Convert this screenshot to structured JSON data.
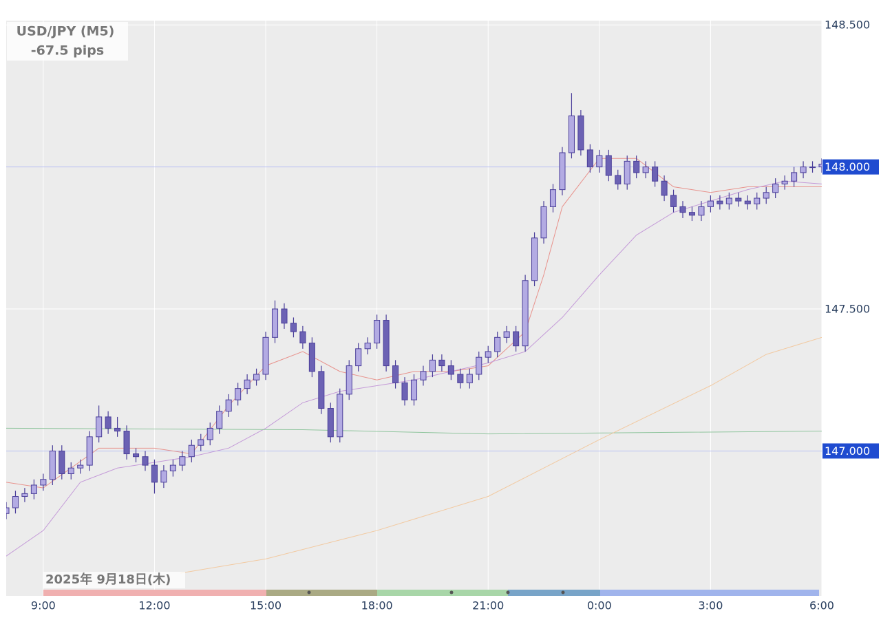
{
  "chart_data": {
    "type": "candlestick",
    "title": "USD/JPY (M5)",
    "subtitle": "-67.5 pips",
    "date_label": "2025年 9月18日(木)",
    "xlim": [
      8,
      30
    ],
    "ylim": [
      146.49,
      148.515
    ],
    "xticks": [
      {
        "value": 9,
        "label": "9:00"
      },
      {
        "value": 12,
        "label": "12:00"
      },
      {
        "value": 15,
        "label": "15:00"
      },
      {
        "value": 18,
        "label": "18:00"
      },
      {
        "value": 21,
        "label": "21:00"
      },
      {
        "value": 24,
        "label": "0:00"
      },
      {
        "value": 27,
        "label": "3:00"
      },
      {
        "value": 30,
        "label": "6:00"
      }
    ],
    "yticks": [
      {
        "value": 148.5,
        "label": "148.500"
      },
      {
        "value": 148,
        "label": "148.000",
        "highlight": true
      },
      {
        "value": 147.5,
        "label": "147.500"
      },
      {
        "value": 147,
        "label": "147.000",
        "highlight": true
      }
    ],
    "grid": true,
    "up_color": "#b3abe3",
    "down_color": "#6c62b4",
    "edge_color": "#4b3f9a",
    "highlight_color": "#1f4bd0",
    "x": [
      8,
      8.25,
      8.5,
      8.75,
      9,
      9.25,
      9.5,
      9.75,
      10,
      10.25,
      10.5,
      10.75,
      11,
      11.25,
      11.5,
      11.75,
      12,
      12.25,
      12.5,
      12.75,
      13,
      13.25,
      13.5,
      13.75,
      14,
      14.25,
      14.5,
      14.75,
      15,
      15.25,
      15.5,
      15.75,
      16,
      16.25,
      16.5,
      16.75,
      17,
      17.25,
      17.5,
      17.75,
      18,
      18.25,
      18.5,
      18.75,
      19,
      19.25,
      19.5,
      19.75,
      20,
      20.25,
      20.5,
      20.75,
      21,
      21.25,
      21.5,
      21.75,
      22,
      22.25,
      22.5,
      22.75,
      23,
      23.25,
      23.5,
      23.75,
      24,
      24.25,
      24.5,
      24.75,
      25,
      25.25,
      25.5,
      25.75,
      26,
      26.25,
      26.5,
      26.75,
      27,
      27.25,
      27.5,
      27.75,
      28,
      28.25,
      28.5,
      28.75,
      29,
      29.25,
      29.5,
      29.75,
      30
    ],
    "candles": [
      [
        146.78,
        146.82,
        146.76,
        146.8
      ],
      [
        146.8,
        146.86,
        146.78,
        146.84
      ],
      [
        146.84,
        146.87,
        146.82,
        146.85
      ],
      [
        146.85,
        146.9,
        146.83,
        146.88
      ],
      [
        146.88,
        146.92,
        146.86,
        146.9
      ],
      [
        146.9,
        147.02,
        146.88,
        147.0
      ],
      [
        147.0,
        147.02,
        146.9,
        146.92
      ],
      [
        146.92,
        146.96,
        146.9,
        146.94
      ],
      [
        146.94,
        146.97,
        146.92,
        146.95
      ],
      [
        146.95,
        147.07,
        146.93,
        147.05
      ],
      [
        147.05,
        147.16,
        147.03,
        147.12
      ],
      [
        147.12,
        147.14,
        147.06,
        147.08
      ],
      [
        147.08,
        147.12,
        147.05,
        147.07
      ],
      [
        147.07,
        147.09,
        146.97,
        146.99
      ],
      [
        146.99,
        147.01,
        146.96,
        146.98
      ],
      [
        146.98,
        147.0,
        146.93,
        146.95
      ],
      [
        146.95,
        146.97,
        146.85,
        146.89
      ],
      [
        146.89,
        146.95,
        146.87,
        146.93
      ],
      [
        146.93,
        146.97,
        146.91,
        146.95
      ],
      [
        146.95,
        147.0,
        146.93,
        146.98
      ],
      [
        146.98,
        147.04,
        146.96,
        147.02
      ],
      [
        147.02,
        147.06,
        147.0,
        147.04
      ],
      [
        147.04,
        147.1,
        147.02,
        147.08
      ],
      [
        147.08,
        147.16,
        147.06,
        147.14
      ],
      [
        147.14,
        147.2,
        147.12,
        147.18
      ],
      [
        147.18,
        147.24,
        147.16,
        147.22
      ],
      [
        147.22,
        147.27,
        147.2,
        147.25
      ],
      [
        147.25,
        147.29,
        147.23,
        147.27
      ],
      [
        147.27,
        147.42,
        147.25,
        147.4
      ],
      [
        147.4,
        147.53,
        147.38,
        147.5
      ],
      [
        147.5,
        147.52,
        147.43,
        147.45
      ],
      [
        147.45,
        147.47,
        147.4,
        147.42
      ],
      [
        147.42,
        147.44,
        147.36,
        147.38
      ],
      [
        147.38,
        147.4,
        147.26,
        147.28
      ],
      [
        147.28,
        147.3,
        147.13,
        147.15
      ],
      [
        147.15,
        147.17,
        147.03,
        147.05
      ],
      [
        147.05,
        147.22,
        147.03,
        147.2
      ],
      [
        147.2,
        147.32,
        147.18,
        147.3
      ],
      [
        147.3,
        147.38,
        147.28,
        147.36
      ],
      [
        147.36,
        147.4,
        147.34,
        147.38
      ],
      [
        147.38,
        147.48,
        147.36,
        147.46
      ],
      [
        147.46,
        147.48,
        147.28,
        147.3
      ],
      [
        147.3,
        147.32,
        147.22,
        147.24
      ],
      [
        147.24,
        147.26,
        147.16,
        147.18
      ],
      [
        147.18,
        147.27,
        147.16,
        147.25
      ],
      [
        147.25,
        147.3,
        147.23,
        147.28
      ],
      [
        147.28,
        147.34,
        147.26,
        147.32
      ],
      [
        147.32,
        147.34,
        147.28,
        147.3
      ],
      [
        147.3,
        147.32,
        147.25,
        147.27
      ],
      [
        147.27,
        147.29,
        147.22,
        147.24
      ],
      [
        147.24,
        147.29,
        147.22,
        147.27
      ],
      [
        147.27,
        147.35,
        147.25,
        147.33
      ],
      [
        147.33,
        147.37,
        147.31,
        147.35
      ],
      [
        147.35,
        147.42,
        147.33,
        147.4
      ],
      [
        147.4,
        147.44,
        147.38,
        147.42
      ],
      [
        147.42,
        147.44,
        147.35,
        147.37
      ],
      [
        147.37,
        147.62,
        147.35,
        147.6
      ],
      [
        147.6,
        147.77,
        147.58,
        147.75
      ],
      [
        147.75,
        147.88,
        147.73,
        147.86
      ],
      [
        147.86,
        147.94,
        147.84,
        147.92
      ],
      [
        147.92,
        148.07,
        147.9,
        148.05
      ],
      [
        148.05,
        148.26,
        148.03,
        148.18
      ],
      [
        148.18,
        148.2,
        148.04,
        148.06
      ],
      [
        148.06,
        148.08,
        147.98,
        148.0
      ],
      [
        148.0,
        148.06,
        147.98,
        148.04
      ],
      [
        148.04,
        148.06,
        147.95,
        147.97
      ],
      [
        147.97,
        147.99,
        147.92,
        147.94
      ],
      [
        147.94,
        148.04,
        147.92,
        148.02
      ],
      [
        148.02,
        148.04,
        147.96,
        147.98
      ],
      [
        147.98,
        148.02,
        147.96,
        148.0
      ],
      [
        148.0,
        148.02,
        147.93,
        147.95
      ],
      [
        147.95,
        147.97,
        147.88,
        147.9
      ],
      [
        147.9,
        147.92,
        147.84,
        147.86
      ],
      [
        147.86,
        147.88,
        147.82,
        147.84
      ],
      [
        147.84,
        147.86,
        147.81,
        147.83
      ],
      [
        147.83,
        147.88,
        147.81,
        147.86
      ],
      [
        147.86,
        147.9,
        147.84,
        147.88
      ],
      [
        147.88,
        147.9,
        147.85,
        147.87
      ],
      [
        147.87,
        147.91,
        147.85,
        147.89
      ],
      [
        147.89,
        147.91,
        147.86,
        147.88
      ],
      [
        147.88,
        147.9,
        147.85,
        147.87
      ],
      [
        147.87,
        147.91,
        147.85,
        147.89
      ],
      [
        147.89,
        147.93,
        147.87,
        147.91
      ],
      [
        147.91,
        147.96,
        147.89,
        147.94
      ],
      [
        147.94,
        147.97,
        147.92,
        147.95
      ],
      [
        147.95,
        148.0,
        147.93,
        147.98
      ],
      [
        147.98,
        148.02,
        147.96,
        148.0
      ],
      [
        148.0,
        148.02,
        147.98,
        148.0
      ],
      [
        148.0,
        148.03,
        147.98,
        148.01
      ]
    ],
    "lines": [
      {
        "color": "#e8928c",
        "x": [
          8,
          9,
          10.5,
          12,
          13,
          14,
          15,
          16,
          17,
          18,
          19,
          20,
          21,
          22,
          22.5,
          23,
          24,
          25,
          26,
          27,
          28,
          29,
          30
        ],
        "values": [
          146.89,
          146.87,
          147.01,
          147.01,
          146.99,
          147.16,
          147.3,
          147.35,
          147.28,
          147.25,
          147.28,
          147.28,
          147.3,
          147.42,
          147.62,
          147.86,
          148.03,
          148.03,
          147.93,
          147.91,
          147.93,
          147.93,
          147.93
        ]
      },
      {
        "color": "#c49ad8",
        "x": [
          8,
          9,
          10,
          11,
          12,
          13,
          14,
          15,
          16,
          17,
          18,
          19,
          20,
          21,
          22,
          23,
          24,
          25,
          26,
          27,
          28,
          29,
          30
        ],
        "values": [
          146.63,
          146.72,
          146.89,
          146.94,
          146.96,
          146.98,
          147.01,
          147.08,
          147.17,
          147.21,
          147.23,
          147.25,
          147.28,
          147.31,
          147.35,
          147.47,
          147.62,
          147.76,
          147.84,
          147.88,
          147.92,
          147.95,
          147.94
        ]
      },
      {
        "color": "#8ec49c",
        "x": [
          8,
          16,
          21,
          30
        ],
        "values": [
          147.08,
          147.075,
          147.06,
          147.07
        ]
      },
      {
        "color": "#f2c9a0",
        "x": [
          12.7,
          15,
          18,
          21,
          24,
          27,
          28.5,
          30
        ],
        "values": [
          146.57,
          146.62,
          146.72,
          146.84,
          147.04,
          147.23,
          147.34,
          147.4
        ]
      }
    ]
  }
}
